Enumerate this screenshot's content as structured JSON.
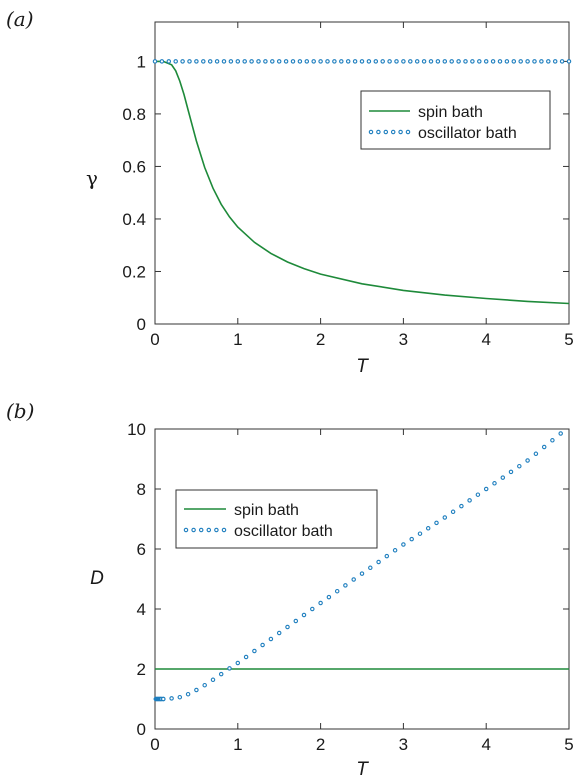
{
  "colors": {
    "spin": "#1e8a3a",
    "oscillator": "#1f7fbf",
    "axis": "#333333"
  },
  "chart_data": [
    {
      "type": "line",
      "panel_label": "(a)",
      "xlabel": "T",
      "ylabel": "γ",
      "xlim": [
        0,
        5
      ],
      "ylim": [
        0,
        1.15
      ],
      "xticks": [
        0,
        1,
        2,
        3,
        4,
        5
      ],
      "yticks": [
        0,
        0.2,
        0.4,
        0.6,
        0.8,
        1
      ],
      "xtick_labels": [
        "0",
        "1",
        "2",
        "3",
        "4",
        "5"
      ],
      "ytick_labels": [
        "0",
        "0.2",
        "0.4",
        "0.6",
        "0.8",
        "1"
      ],
      "legend_position": "top-right",
      "series": [
        {
          "name": "spin bath",
          "style": "solid",
          "x": [
            0,
            0.1,
            0.2,
            0.25,
            0.3,
            0.35,
            0.4,
            0.5,
            0.6,
            0.7,
            0.8,
            0.9,
            1.0,
            1.2,
            1.4,
            1.6,
            1.8,
            2.0,
            2.5,
            3.0,
            3.5,
            4.0,
            4.5,
            5.0
          ],
          "y": [
            1,
            1,
            0.987,
            0.964,
            0.925,
            0.874,
            0.815,
            0.697,
            0.596,
            0.517,
            0.456,
            0.408,
            0.369,
            0.311,
            0.269,
            0.236,
            0.211,
            0.19,
            0.153,
            0.128,
            0.11,
            0.097,
            0.086,
            0.078
          ]
        },
        {
          "name": "oscillator bath",
          "style": "dotted",
          "x": [
            0,
            5
          ],
          "y": [
            1,
            1
          ]
        }
      ]
    },
    {
      "type": "line",
      "panel_label": "(b)",
      "xlabel": "T",
      "ylabel": "D",
      "xlim": [
        0,
        5
      ],
      "ylim": [
        0,
        10
      ],
      "xticks": [
        0,
        1,
        2,
        3,
        4,
        5
      ],
      "yticks": [
        0,
        2,
        4,
        6,
        8,
        10
      ],
      "xtick_labels": [
        "0",
        "1",
        "2",
        "3",
        "4",
        "5"
      ],
      "ytick_labels": [
        "0",
        "2",
        "4",
        "6",
        "8",
        "10"
      ],
      "legend_position": "top-left",
      "series": [
        {
          "name": "spin bath",
          "style": "solid",
          "x": [
            0,
            5
          ],
          "y": [
            2,
            2
          ]
        },
        {
          "name": "oscillator bath",
          "style": "dotted",
          "x": [
            0.01,
            0.02,
            0.03,
            0.04,
            0.05,
            0.06,
            0.07,
            0.08,
            0.1,
            0.15,
            0.2,
            0.3,
            0.4,
            0.5,
            0.6,
            0.7,
            0.8,
            0.9,
            1.0,
            1.2,
            1.4,
            1.6,
            1.8,
            2.0,
            2.5,
            3.0,
            3.5,
            4.0,
            4.5,
            4.9
          ],
          "y": [
            1,
            1,
            1,
            1,
            1,
            1,
            1,
            1,
            1,
            1,
            1.02,
            1.06,
            1.16,
            1.3,
            1.46,
            1.64,
            1.83,
            2.02,
            2.2,
            2.6,
            3.0,
            3.4,
            3.8,
            4.2,
            5.18,
            6.15,
            7.05,
            8.0,
            8.95,
            9.85
          ]
        }
      ]
    }
  ]
}
